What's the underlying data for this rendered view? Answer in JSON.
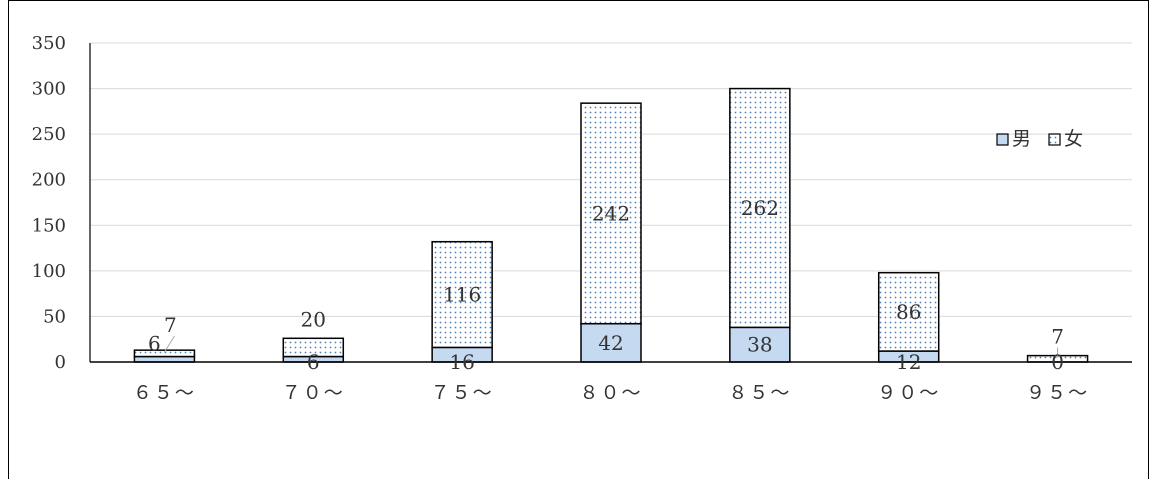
{
  "chart_data": {
    "type": "bar",
    "stacked": true,
    "title": "",
    "xlabel": "",
    "ylabel": "",
    "ylim": [
      0,
      350
    ],
    "yticks": [
      0,
      50,
      100,
      150,
      200,
      250,
      300,
      350
    ],
    "grid": true,
    "legend_position": "right",
    "categories": [
      "６５～",
      "７０～",
      "７５～",
      "８０～",
      "８５～",
      "９０～",
      "９５～"
    ],
    "series": [
      {
        "name": "男",
        "values": [
          6,
          6,
          16,
          42,
          38,
          12,
          0
        ],
        "color": "#c5d9f1",
        "pattern": "solid"
      },
      {
        "name": "女",
        "values": [
          7,
          20,
          116,
          242,
          262,
          86,
          7
        ],
        "color": "#ffffff",
        "pattern": "dotted-blue"
      }
    ]
  }
}
